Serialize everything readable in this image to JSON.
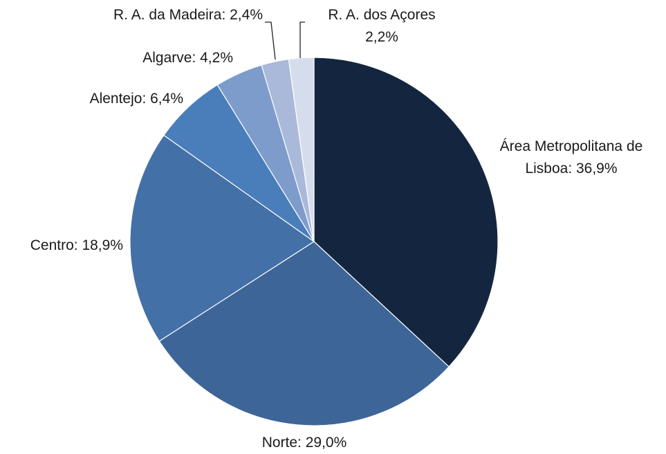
{
  "chart_data": {
    "type": "pie",
    "values": [
      36.9,
      29.0,
      18.9,
      6.4,
      4.2,
      2.4,
      2.2
    ],
    "value_labels": [
      "Área Metropolitana de\nLisboa: 36,9%",
      "Norte: 29,0%",
      "Centro: 18,9%",
      "Alentejo: 6,4%",
      "Algarve: 4,2%",
      "R. A. da Madeira: 2,4%",
      "R. A. dos Açores\n2,2%"
    ],
    "colors": [
      "#14263f",
      "#3e6597",
      "#4470a8",
      "#4a7ebb",
      "#7e9ccb",
      "#aab9d9",
      "#d5dded"
    ]
  }
}
